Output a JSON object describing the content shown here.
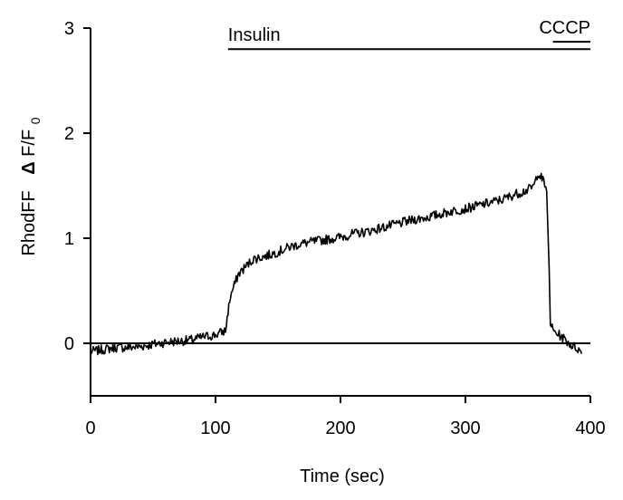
{
  "chart_data": {
    "type": "line",
    "xlabel": "Time (sec)",
    "ylabel_prefix": "RhodFF",
    "ylabel_symbol": "Δ",
    "ylabel_f": "F/F",
    "ylabel_sub": "0",
    "xlim": [
      0,
      400
    ],
    "ylim": [
      -0.5,
      3
    ],
    "xticks": [
      0,
      100,
      200,
      300,
      400
    ],
    "yticks": [
      0,
      1,
      2,
      3
    ],
    "xtick_labels": [
      "0",
      "100",
      "200",
      "300",
      "400"
    ],
    "ytick_labels": [
      "0",
      "1",
      "2",
      "3"
    ],
    "reference_line_y": 0,
    "annotations": [
      {
        "label": "Insulin",
        "x_start": 110,
        "x_end": 400,
        "y": 2.8
      },
      {
        "label": "CCCP",
        "x_start": 370,
        "x_end": 400,
        "y": 2.87
      }
    ],
    "series": [
      {
        "x": [
          0,
          10,
          20,
          30,
          40,
          50,
          60,
          70,
          80,
          90,
          100,
          108,
          110,
          112,
          115,
          118,
          120,
          125,
          130,
          140,
          150,
          160,
          170,
          180,
          190,
          200,
          210,
          220,
          230,
          240,
          250,
          260,
          270,
          280,
          290,
          300,
          310,
          320,
          330,
          340,
          350,
          355,
          358,
          362,
          365,
          367,
          368,
          370,
          375,
          380,
          385,
          390,
          393
        ],
        "y": [
          -0.08,
          -0.06,
          -0.04,
          -0.04,
          -0.03,
          -0.01,
          0.01,
          0.02,
          0.03,
          0.06,
          0.08,
          0.12,
          0.3,
          0.45,
          0.55,
          0.65,
          0.68,
          0.74,
          0.8,
          0.83,
          0.87,
          0.92,
          0.95,
          0.97,
          0.99,
          1.01,
          1.04,
          1.06,
          1.09,
          1.12,
          1.15,
          1.18,
          1.2,
          1.23,
          1.26,
          1.28,
          1.31,
          1.34,
          1.37,
          1.42,
          1.46,
          1.5,
          1.63,
          1.55,
          1.45,
          0.7,
          0.2,
          0.12,
          0.08,
          0.03,
          -0.02,
          -0.05,
          -0.1
        ]
      }
    ]
  }
}
